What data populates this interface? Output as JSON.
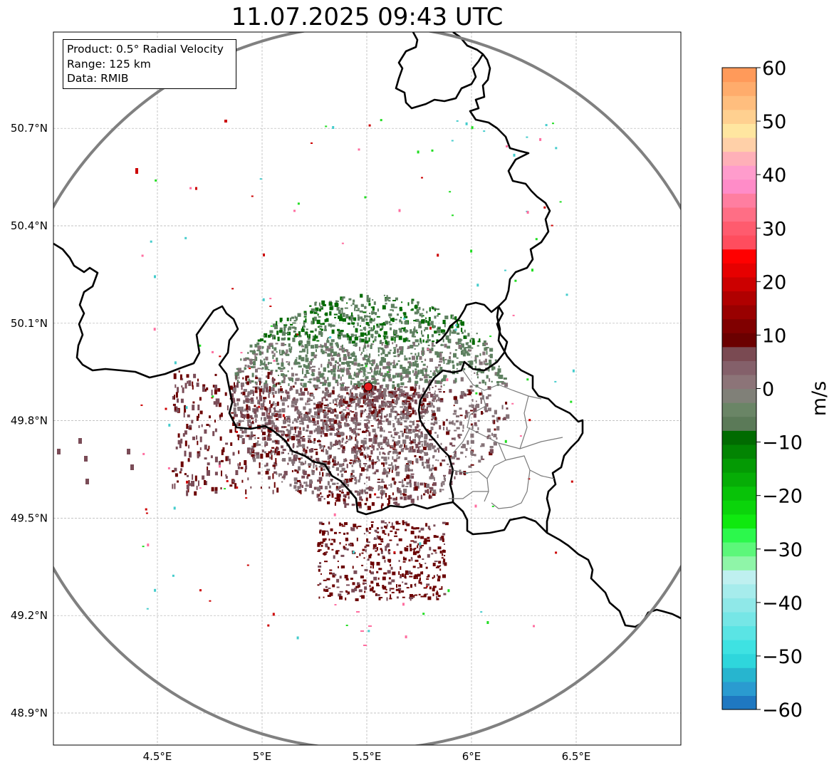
{
  "title": "11.07.2025 09:43 UTC",
  "info": {
    "product": "Product: 0.5° Radial Velocity",
    "range": "Range: 125 km",
    "source": "Data: RMIB"
  },
  "map": {
    "lon_range": [
      4.0,
      7.0
    ],
    "lat_range": [
      48.8,
      50.99
    ],
    "lon_ticks": [
      {
        "value": 4.5,
        "label": "4.5°E"
      },
      {
        "value": 5.0,
        "label": "5°E"
      },
      {
        "value": 5.5,
        "label": "5.5°E"
      },
      {
        "value": 6.0,
        "label": "6°E"
      },
      {
        "value": 6.5,
        "label": "6.5°E"
      }
    ],
    "lat_ticks": [
      {
        "value": 48.9,
        "label": "48.9°N"
      },
      {
        "value": 49.2,
        "label": "49.2°N"
      },
      {
        "value": 49.5,
        "label": "49.5°N"
      },
      {
        "value": 49.8,
        "label": "49.8°N"
      },
      {
        "value": 50.1,
        "label": "50.1°N"
      },
      {
        "value": 50.4,
        "label": "50.4°N"
      },
      {
        "value": 50.7,
        "label": "50.7°N"
      }
    ],
    "radar_site": {
      "lon": 5.505,
      "lat": 49.914,
      "color": "#e31a1c"
    },
    "range_ring_color": "#808080",
    "grid": true
  },
  "colorbar": {
    "unit": "m/s",
    "vmin": -60,
    "vmax": 60,
    "tick_values": [
      -60,
      -50,
      -40,
      -30,
      -20,
      -10,
      0,
      10,
      20,
      30,
      40,
      50,
      60
    ],
    "tick_labels": [
      "−60",
      "−50",
      "−40",
      "−30",
      "−20",
      "−10",
      "0",
      "10",
      "20",
      "30",
      "40",
      "50",
      "60"
    ],
    "colors": [
      "#1f78c1",
      "#2a9bd0",
      "#27b5cf",
      "#2ed6dc",
      "#3ee2e2",
      "#5ae4e4",
      "#76e6e6",
      "#8fe8e8",
      "#a6ecec",
      "#bff0f0",
      "#8ff5a8",
      "#5cf77a",
      "#2cf84c",
      "#0fe90f",
      "#0bd40b",
      "#08c208",
      "#06ad06",
      "#049a04",
      "#028402",
      "#016b01",
      "#5b7a58",
      "#6a8566",
      "#808078",
      "#8c7478",
      "#84606a",
      "#7a4a52",
      "#6b0000",
      "#800000",
      "#990000",
      "#b00000",
      "#cc0000",
      "#e60000",
      "#ff0000",
      "#ff4d5e",
      "#ff5b6e",
      "#ff6e85",
      "#ff7ea0",
      "#ff8cc8",
      "#ff9ccc",
      "#ffb0b8",
      "#ffd0a8",
      "#ffe6a0",
      "#ffd090",
      "#ffbe7e",
      "#ffac6c",
      "#ff9a5a"
    ]
  },
  "echo_colors": {
    "negative_strong": "#046b04",
    "negative_weak": "#5e8060",
    "zero": "#857378",
    "positive_weak": "#7a4c57",
    "positive_strong": "#6b0000",
    "outliers": [
      "#ff6ea0",
      "#22dd22",
      "#44cccc",
      "#cc0000"
    ]
  }
}
